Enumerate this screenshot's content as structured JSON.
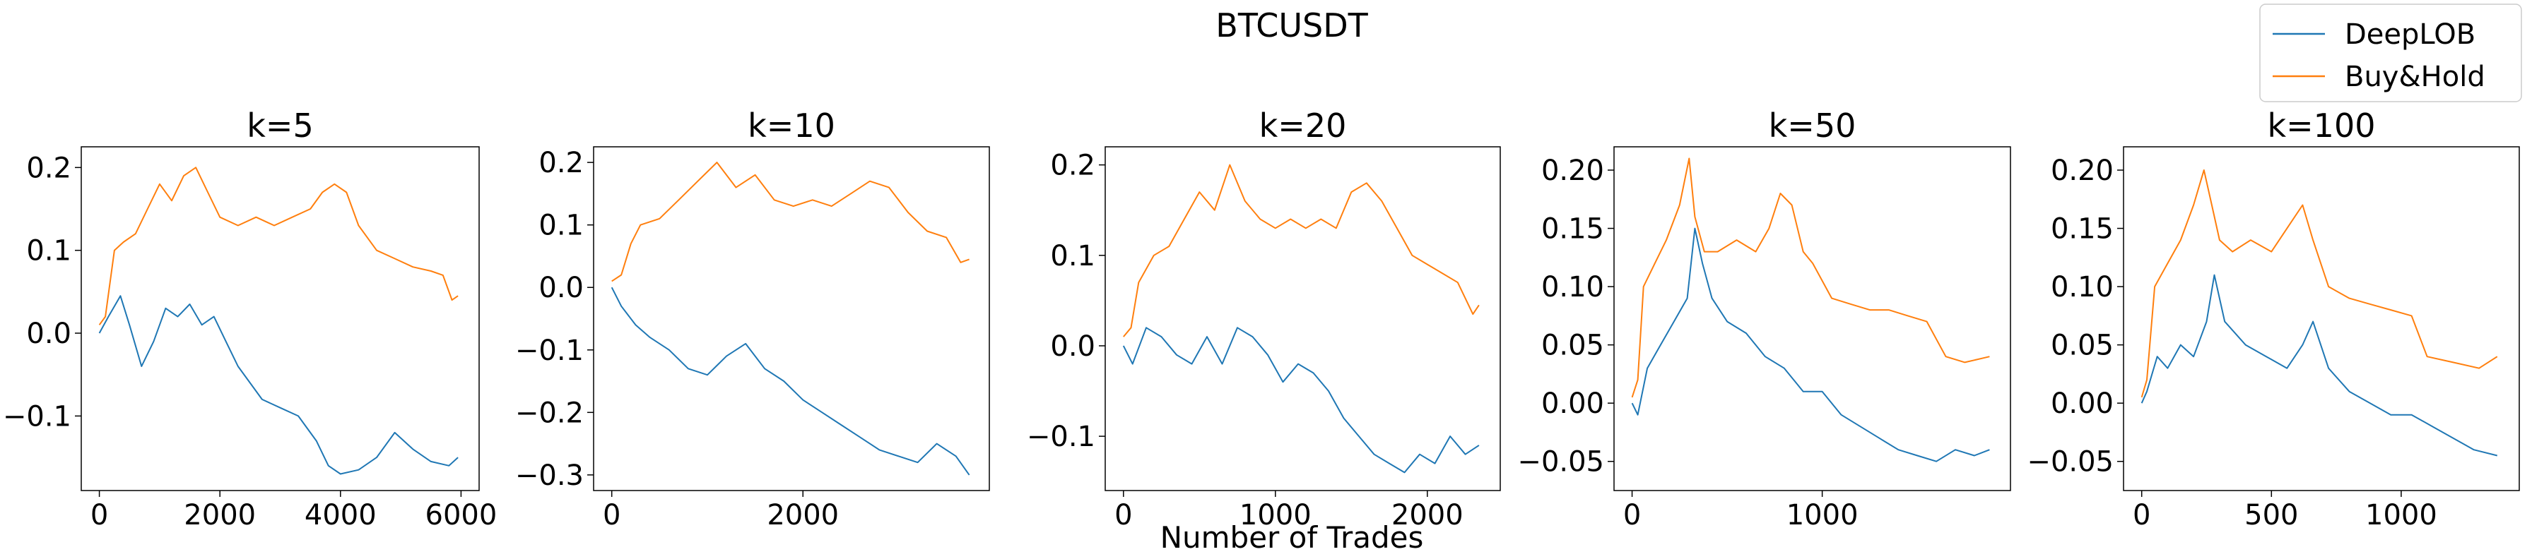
{
  "figure": {
    "title": "BTCUSDT",
    "xlabel": "Number of Trades",
    "legend": {
      "placement": "top-right",
      "entries": [
        {
          "name": "DeepLOB",
          "color": "#1f77b4"
        },
        {
          "name": "Buy&Hold",
          "color": "#ff7f0e"
        }
      ]
    }
  },
  "chart_data": [
    {
      "type": "line",
      "title": "k=5",
      "xlim": [
        -300,
        6300
      ],
      "ylim": [
        -0.19,
        0.225
      ],
      "xticks": [
        0,
        2000,
        4000,
        6000
      ],
      "xtick_labels": [
        "0",
        "2000",
        "4000",
        "6000"
      ],
      "yticks": [
        -0.1,
        0.0,
        0.1,
        0.2
      ],
      "ytick_labels": [
        "−0.1",
        "0.0",
        "0.1",
        "0.2"
      ],
      "grid": false,
      "series": [
        {
          "name": "DeepLOB",
          "color": "#1f77b4",
          "x": [
            0,
            150,
            350,
            500,
            700,
            900,
            1100,
            1300,
            1500,
            1700,
            1900,
            2100,
            2300,
            2500,
            2700,
            3000,
            3300,
            3600,
            3800,
            4000,
            4300,
            4600,
            4900,
            5200,
            5500,
            5800,
            5950
          ],
          "y": [
            0.0,
            0.02,
            0.045,
            0.01,
            -0.04,
            -0.01,
            0.03,
            0.02,
            0.035,
            0.01,
            0.02,
            -0.01,
            -0.04,
            -0.06,
            -0.08,
            -0.09,
            -0.1,
            -0.13,
            -0.16,
            -0.17,
            -0.165,
            -0.15,
            -0.12,
            -0.14,
            -0.155,
            -0.16,
            -0.15
          ]
        },
        {
          "name": "Buy&Hold",
          "color": "#ff7f0e",
          "x": [
            0,
            100,
            250,
            400,
            600,
            800,
            1000,
            1200,
            1400,
            1600,
            1800,
            2000,
            2300,
            2600,
            2900,
            3200,
            3500,
            3700,
            3900,
            4100,
            4300,
            4600,
            4900,
            5200,
            5500,
            5700,
            5850,
            5950
          ],
          "y": [
            0.01,
            0.02,
            0.1,
            0.11,
            0.12,
            0.15,
            0.18,
            0.16,
            0.19,
            0.2,
            0.17,
            0.14,
            0.13,
            0.14,
            0.13,
            0.14,
            0.15,
            0.17,
            0.18,
            0.17,
            0.13,
            0.1,
            0.09,
            0.08,
            0.075,
            0.07,
            0.04,
            0.045
          ]
        }
      ]
    },
    {
      "type": "line",
      "title": "k=10",
      "xlim": [
        -190,
        3950
      ],
      "ylim": [
        -0.325,
        0.225
      ],
      "xticks": [
        0,
        2000
      ],
      "xtick_labels": [
        "0",
        "2000"
      ],
      "yticks": [
        -0.3,
        -0.2,
        -0.1,
        0.0,
        0.1,
        0.2
      ],
      "ytick_labels": [
        "−0.3",
        "−0.2",
        "−0.1",
        "0.0",
        "0.1",
        "0.2"
      ],
      "grid": false,
      "series": [
        {
          "name": "DeepLOB",
          "color": "#1f77b4",
          "x": [
            0,
            100,
            250,
            400,
            600,
            800,
            1000,
            1200,
            1400,
            1600,
            1800,
            2000,
            2200,
            2400,
            2600,
            2800,
            3000,
            3200,
            3400,
            3600,
            3740
          ],
          "y": [
            0.0,
            -0.03,
            -0.06,
            -0.08,
            -0.1,
            -0.13,
            -0.14,
            -0.11,
            -0.09,
            -0.13,
            -0.15,
            -0.18,
            -0.2,
            -0.22,
            -0.24,
            -0.26,
            -0.27,
            -0.28,
            -0.25,
            -0.27,
            -0.3
          ]
        },
        {
          "name": "Buy&Hold",
          "color": "#ff7f0e",
          "x": [
            0,
            100,
            200,
            300,
            500,
            700,
            900,
            1100,
            1300,
            1500,
            1700,
            1900,
            2100,
            2300,
            2500,
            2700,
            2900,
            3100,
            3300,
            3500,
            3650,
            3740
          ],
          "y": [
            0.01,
            0.02,
            0.07,
            0.1,
            0.11,
            0.14,
            0.17,
            0.2,
            0.16,
            0.18,
            0.14,
            0.13,
            0.14,
            0.13,
            0.15,
            0.17,
            0.16,
            0.12,
            0.09,
            0.08,
            0.04,
            0.045
          ]
        }
      ]
    },
    {
      "type": "line",
      "title": "k=20",
      "xlim": [
        -120,
        2480
      ],
      "ylim": [
        -0.16,
        0.22
      ],
      "xticks": [
        0,
        1000,
        2000
      ],
      "xtick_labels": [
        "0",
        "1000",
        "2000"
      ],
      "yticks": [
        -0.1,
        0.0,
        0.1,
        0.2
      ],
      "ytick_labels": [
        "−0.1",
        "0.0",
        "0.1",
        "0.2"
      ],
      "grid": false,
      "series": [
        {
          "name": "DeepLOB",
          "color": "#1f77b4",
          "x": [
            0,
            60,
            150,
            250,
            350,
            450,
            550,
            650,
            750,
            850,
            950,
            1050,
            1150,
            1250,
            1350,
            1450,
            1550,
            1650,
            1750,
            1850,
            1950,
            2050,
            2150,
            2250,
            2340
          ],
          "y": [
            0.0,
            -0.02,
            0.02,
            0.01,
            -0.01,
            -0.02,
            0.01,
            -0.02,
            0.02,
            0.01,
            -0.01,
            -0.04,
            -0.02,
            -0.03,
            -0.05,
            -0.08,
            -0.1,
            -0.12,
            -0.13,
            -0.14,
            -0.12,
            -0.13,
            -0.1,
            -0.12,
            -0.11
          ]
        },
        {
          "name": "Buy&Hold",
          "color": "#ff7f0e",
          "x": [
            0,
            50,
            100,
            200,
            300,
            400,
            500,
            600,
            700,
            800,
            900,
            1000,
            1100,
            1200,
            1300,
            1400,
            1500,
            1600,
            1700,
            1800,
            1900,
            2000,
            2100,
            2200,
            2300,
            2340
          ],
          "y": [
            0.01,
            0.02,
            0.07,
            0.1,
            0.11,
            0.14,
            0.17,
            0.15,
            0.2,
            0.16,
            0.14,
            0.13,
            0.14,
            0.13,
            0.14,
            0.13,
            0.17,
            0.18,
            0.16,
            0.13,
            0.1,
            0.09,
            0.08,
            0.07,
            0.035,
            0.045
          ]
        }
      ]
    },
    {
      "type": "line",
      "title": "k=50",
      "xlim": [
        -95,
        1990
      ],
      "ylim": [
        -0.075,
        0.22
      ],
      "xticks": [
        0,
        1000
      ],
      "xtick_labels": [
        "0",
        "1000"
      ],
      "yticks": [
        -0.05,
        0.0,
        0.05,
        0.1,
        0.15,
        0.2
      ],
      "ytick_labels": [
        "−0.05",
        "0.00",
        "0.05",
        "0.10",
        "0.15",
        "0.20"
      ],
      "grid": false,
      "series": [
        {
          "name": "DeepLOB",
          "color": "#1f77b4",
          "x": [
            0,
            30,
            80,
            150,
            220,
            290,
            330,
            370,
            420,
            500,
            600,
            700,
            800,
            900,
            1000,
            1100,
            1200,
            1300,
            1400,
            1500,
            1600,
            1700,
            1800,
            1880
          ],
          "y": [
            0.0,
            -0.01,
            0.03,
            0.05,
            0.07,
            0.09,
            0.15,
            0.12,
            0.09,
            0.07,
            0.06,
            0.04,
            0.03,
            0.01,
            0.01,
            -0.01,
            -0.02,
            -0.03,
            -0.04,
            -0.045,
            -0.05,
            -0.04,
            -0.045,
            -0.04
          ]
        },
        {
          "name": "Buy&Hold",
          "color": "#ff7f0e",
          "x": [
            0,
            30,
            60,
            120,
            180,
            250,
            300,
            330,
            380,
            450,
            550,
            650,
            720,
            780,
            840,
            900,
            950,
            1050,
            1150,
            1250,
            1350,
            1450,
            1550,
            1650,
            1750,
            1880
          ],
          "y": [
            0.005,
            0.02,
            0.1,
            0.12,
            0.14,
            0.17,
            0.21,
            0.16,
            0.13,
            0.13,
            0.14,
            0.13,
            0.15,
            0.18,
            0.17,
            0.13,
            0.12,
            0.09,
            0.085,
            0.08,
            0.08,
            0.075,
            0.07,
            0.04,
            0.035,
            0.04
          ]
        }
      ]
    },
    {
      "type": "line",
      "title": "k=100",
      "xlim": [
        -70,
        1455
      ],
      "ylim": [
        -0.075,
        0.22
      ],
      "xticks": [
        0,
        500,
        1000
      ],
      "xtick_labels": [
        "0",
        "500",
        "1000"
      ],
      "yticks": [
        -0.05,
        0.0,
        0.05,
        0.1,
        0.15,
        0.2
      ],
      "ytick_labels": [
        "−0.05",
        "0.00",
        "0.05",
        "0.10",
        "0.15",
        "0.20"
      ],
      "grid": false,
      "series": [
        {
          "name": "DeepLOB",
          "color": "#1f77b4",
          "x": [
            0,
            20,
            60,
            100,
            150,
            200,
            250,
            280,
            320,
            400,
            480,
            560,
            620,
            660,
            720,
            800,
            880,
            960,
            1040,
            1120,
            1200,
            1280,
            1370
          ],
          "y": [
            0.0,
            0.01,
            0.04,
            0.03,
            0.05,
            0.04,
            0.07,
            0.11,
            0.07,
            0.05,
            0.04,
            0.03,
            0.05,
            0.07,
            0.03,
            0.01,
            0.0,
            -0.01,
            -0.01,
            -0.02,
            -0.03,
            -0.04,
            -0.045
          ]
        },
        {
          "name": "Buy&Hold",
          "color": "#ff7f0e",
          "x": [
            0,
            20,
            50,
            100,
            150,
            200,
            240,
            270,
            300,
            350,
            420,
            500,
            560,
            620,
            660,
            720,
            800,
            880,
            960,
            1040,
            1100,
            1200,
            1300,
            1370
          ],
          "y": [
            0.005,
            0.02,
            0.1,
            0.12,
            0.14,
            0.17,
            0.2,
            0.17,
            0.14,
            0.13,
            0.14,
            0.13,
            0.15,
            0.17,
            0.14,
            0.1,
            0.09,
            0.085,
            0.08,
            0.075,
            0.04,
            0.035,
            0.03,
            0.04
          ]
        }
      ]
    }
  ]
}
